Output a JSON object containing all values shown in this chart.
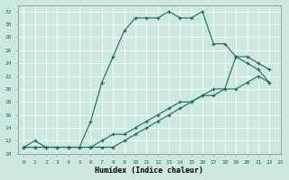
{
  "xlabel": "Humidex (Indice chaleur)",
  "bg_color": "#cce8e0",
  "line_color": "#1a6b5a",
  "grid_color": "#b0d8d0",
  "xlim": [
    -0.5,
    23
  ],
  "ylim": [
    10,
    33
  ],
  "xticks": [
    0,
    1,
    2,
    3,
    4,
    5,
    6,
    7,
    8,
    9,
    10,
    11,
    12,
    13,
    14,
    15,
    16,
    17,
    18,
    19,
    20,
    21,
    22,
    23
  ],
  "yticks": [
    10,
    12,
    14,
    16,
    18,
    20,
    22,
    24,
    26,
    28,
    30,
    32
  ],
  "line1_x": [
    0,
    1,
    2,
    3,
    4,
    5,
    6,
    7,
    8,
    9,
    10,
    11,
    12,
    13,
    14,
    15,
    16,
    17,
    18,
    19,
    20,
    21,
    22
  ],
  "line1_y": [
    11,
    12,
    11,
    11,
    11,
    11,
    15,
    21,
    25,
    29,
    31,
    31,
    31,
    32,
    31,
    31,
    32,
    27,
    27,
    25,
    24,
    23,
    21
  ],
  "line2_x": [
    0,
    1,
    2,
    3,
    4,
    5,
    6,
    7,
    8,
    9,
    10,
    11,
    12,
    13,
    14,
    15,
    16,
    17,
    18,
    19,
    20,
    21,
    22
  ],
  "line2_y": [
    11,
    11,
    11,
    11,
    11,
    11,
    11,
    11,
    11,
    12,
    13,
    14,
    15,
    16,
    17,
    18,
    19,
    19,
    20,
    20,
    21,
    22,
    21
  ],
  "line3_x": [
    0,
    1,
    2,
    3,
    4,
    5,
    6,
    7,
    8,
    9,
    10,
    11,
    12,
    13,
    14,
    15,
    16,
    17,
    18,
    19,
    20,
    21,
    22
  ],
  "line3_y": [
    11,
    11,
    11,
    11,
    11,
    11,
    11,
    12,
    13,
    13,
    14,
    15,
    16,
    17,
    18,
    18,
    19,
    20,
    20,
    25,
    25,
    24,
    23
  ]
}
